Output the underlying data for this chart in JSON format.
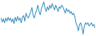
{
  "values": [
    2,
    -3,
    1,
    -4,
    2,
    -2,
    3,
    -1,
    2,
    -3,
    1,
    -5,
    3,
    -2,
    4,
    -1,
    2,
    -4,
    3,
    5,
    -2,
    8,
    4,
    2,
    6,
    10,
    15,
    5,
    2,
    8,
    12,
    18,
    10,
    6,
    14,
    18,
    22,
    14,
    10,
    16,
    12,
    18,
    14,
    20,
    16,
    12,
    18,
    14,
    10,
    16,
    14,
    18,
    16,
    12,
    8,
    14,
    10,
    12,
    8,
    10,
    6,
    8,
    4,
    -4,
    -8,
    -14,
    -6,
    -4,
    -10,
    -18,
    -8,
    -4,
    -6,
    -4,
    -8,
    -6,
    -4,
    -8,
    -6,
    -10
  ],
  "line_color": "#3a8fc0",
  "background_color": "#ffffff",
  "linewidth": 0.7
}
